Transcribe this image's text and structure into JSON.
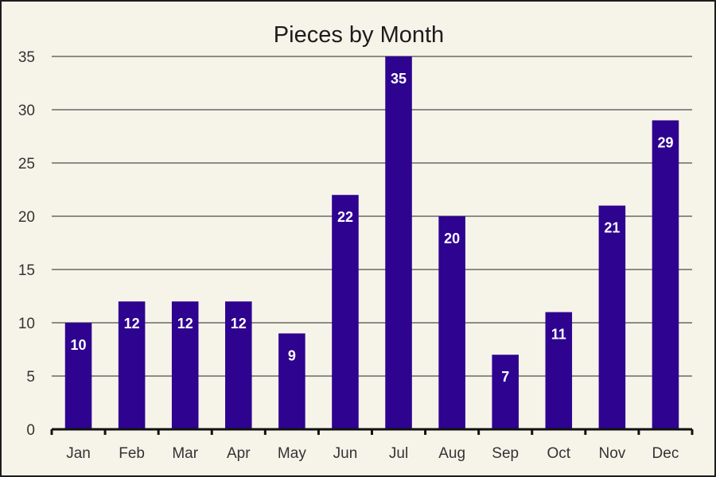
{
  "chart_data": {
    "type": "bar",
    "title": "Pieces by Month",
    "xlabel": "",
    "ylabel": "",
    "categories": [
      "Jan",
      "Feb",
      "Mar",
      "Apr",
      "May",
      "Jun",
      "Jul",
      "Aug",
      "Sep",
      "Oct",
      "Nov",
      "Dec"
    ],
    "values": [
      10,
      12,
      12,
      12,
      9,
      22,
      35,
      20,
      7,
      11,
      21,
      29
    ],
    "ylim": [
      0,
      35
    ],
    "yticks": [
      0,
      5,
      10,
      15,
      20,
      25,
      30,
      35
    ],
    "grid": true,
    "legend": "none",
    "data_labels": true,
    "colors": {
      "bar": "#2e0390",
      "background": "#f6f4e9",
      "label": "#ffffff"
    }
  }
}
